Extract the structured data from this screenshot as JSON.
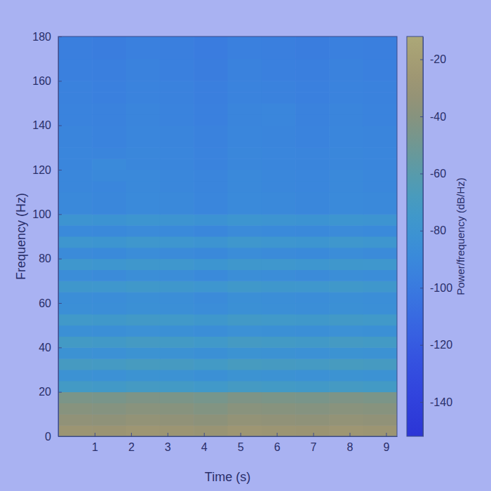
{
  "chart_data": {
    "type": "heatmap",
    "x_label": "Time (s)",
    "y_label": "Frequency (Hz)",
    "xlim": [
      0,
      9.3
    ],
    "ylim": [
      0,
      180
    ],
    "xticks": [
      1,
      2,
      3,
      4,
      5,
      6,
      7,
      8,
      9
    ],
    "yticks": [
      0,
      20,
      40,
      60,
      80,
      100,
      120,
      140,
      160,
      180
    ],
    "x": [
      0.465,
      1.395,
      2.325,
      3.255,
      4.185,
      5.115,
      6.045,
      6.975,
      7.905,
      8.835
    ],
    "y": [
      2.5,
      7.5,
      12.5,
      17.5,
      22.5,
      27.5,
      32.5,
      37.5,
      42.5,
      47.5,
      52.5,
      57.5,
      62.5,
      67.5,
      72.5,
      77.5,
      82.5,
      87.5,
      92.5,
      97.5,
      102.5,
      107.5,
      112.5,
      117.5,
      122.5,
      127.5,
      132.5,
      137.5,
      142.5,
      147.5,
      152.5,
      157.5,
      162.5,
      167.5,
      172.5,
      177.5
    ],
    "values": [
      [
        -28,
        -29,
        -27,
        -28,
        -30,
        -27,
        -28,
        -29,
        -27,
        -28
      ],
      [
        -35,
        -36,
        -34,
        -35,
        -37,
        -34,
        -35,
        -36,
        -34,
        -35
      ],
      [
        -40,
        -41,
        -39,
        -40,
        -42,
        -39,
        -40,
        -41,
        -39,
        -40
      ],
      [
        -45,
        -46,
        -44,
        -45,
        -47,
        -44,
        -45,
        -46,
        -44,
        -45
      ],
      [
        -72,
        -73,
        -71,
        -72,
        -74,
        -71,
        -72,
        -73,
        -71,
        -72
      ],
      [
        -82,
        -83,
        -81,
        -82,
        -84,
        -81,
        -82,
        -83,
        -81,
        -82
      ],
      [
        -70,
        -71,
        -69,
        -70,
        -72,
        -69,
        -70,
        -71,
        -69,
        -70
      ],
      [
        -82,
        -83,
        -81,
        -82,
        -84,
        -81,
        -82,
        -83,
        -81,
        -82
      ],
      [
        -72,
        -73,
        -71,
        -72,
        -74,
        -71,
        -72,
        -73,
        -71,
        -72
      ],
      [
        -84,
        -85,
        -83,
        -84,
        -86,
        -83,
        -84,
        -85,
        -83,
        -84
      ],
      [
        -74,
        -75,
        -73,
        -74,
        -76,
        -73,
        -74,
        -75,
        -73,
        -74
      ],
      [
        -85,
        -86,
        -84,
        -85,
        -87,
        -84,
        -85,
        -86,
        -84,
        -85
      ],
      [
        -86,
        -87,
        -85,
        -86,
        -88,
        -85,
        -86,
        -87,
        -85,
        -86
      ],
      [
        -76,
        -77,
        -75,
        -76,
        -78,
        -75,
        -76,
        -77,
        -75,
        -76
      ],
      [
        -87,
        -88,
        -86,
        -87,
        -89,
        -86,
        -87,
        -88,
        -86,
        -87
      ],
      [
        -77,
        -78,
        -76,
        -77,
        -79,
        -76,
        -77,
        -78,
        -76,
        -77
      ],
      [
        -88,
        -89,
        -87,
        -88,
        -90,
        -87,
        -88,
        -89,
        -87,
        -88
      ],
      [
        -78,
        -79,
        -77,
        -78,
        -80,
        -77,
        -78,
        -79,
        -77,
        -78
      ],
      [
        -89,
        -90,
        -88,
        -89,
        -91,
        -88,
        -89,
        -90,
        -88,
        -89
      ],
      [
        -80,
        -81,
        -79,
        -80,
        -82,
        -79,
        -80,
        -81,
        -79,
        -80
      ],
      [
        -90,
        -91,
        -89,
        -90,
        -92,
        -89,
        -90,
        -91,
        -89,
        -90
      ],
      [
        -90,
        -91,
        -89,
        -90,
        -92,
        -89,
        -90,
        -91,
        -89,
        -90
      ],
      [
        -91,
        -92,
        -90,
        -91,
        -93,
        -90,
        -91,
        -92,
        -90,
        -91
      ],
      [
        -91,
        -90,
        -90,
        -91,
        -93,
        -90,
        -91,
        -92,
        -90,
        -91
      ],
      [
        -92,
        -89,
        -91,
        -92,
        -94,
        -91,
        -92,
        -93,
        -91,
        -92
      ],
      [
        -92,
        -93,
        -91,
        -92,
        -94,
        -91,
        -92,
        -93,
        -91,
        -92
      ],
      [
        -93,
        -94,
        -92,
        -93,
        -95,
        -92,
        -93,
        -94,
        -92,
        -93
      ],
      [
        -93,
        -94,
        -92,
        -93,
        -95,
        -92,
        -93,
        -94,
        -92,
        -93
      ],
      [
        -94,
        -95,
        -93,
        -94,
        -96,
        -93,
        -92,
        -95,
        -93,
        -94
      ],
      [
        -94,
        -95,
        -93,
        -94,
        -96,
        -93,
        -92,
        -95,
        -93,
        -94
      ],
      [
        -95,
        -96,
        -94,
        -95,
        -97,
        -94,
        -95,
        -96,
        -94,
        -95
      ],
      [
        -95,
        -96,
        -94,
        -95,
        -97,
        -94,
        -95,
        -96,
        -94,
        -95
      ],
      [
        -96,
        -97,
        -95,
        -96,
        -98,
        -95,
        -96,
        -97,
        -95,
        -96
      ],
      [
        -96,
        -97,
        -95,
        -96,
        -98,
        -95,
        -96,
        -97,
        -95,
        -96
      ],
      [
        -97,
        -98,
        -96,
        -97,
        -99,
        -96,
        -97,
        -98,
        -96,
        -97
      ],
      [
        -97,
        -98,
        -96,
        -97,
        -99,
        -96,
        -97,
        -98,
        -96,
        -97
      ]
    ],
    "colorbar": {
      "label": "Power/frequency (dB/Hz)",
      "range": [
        -152,
        -12
      ],
      "ticks": [
        -20,
        -40,
        -60,
        -80,
        -100,
        -120,
        -140
      ]
    }
  }
}
